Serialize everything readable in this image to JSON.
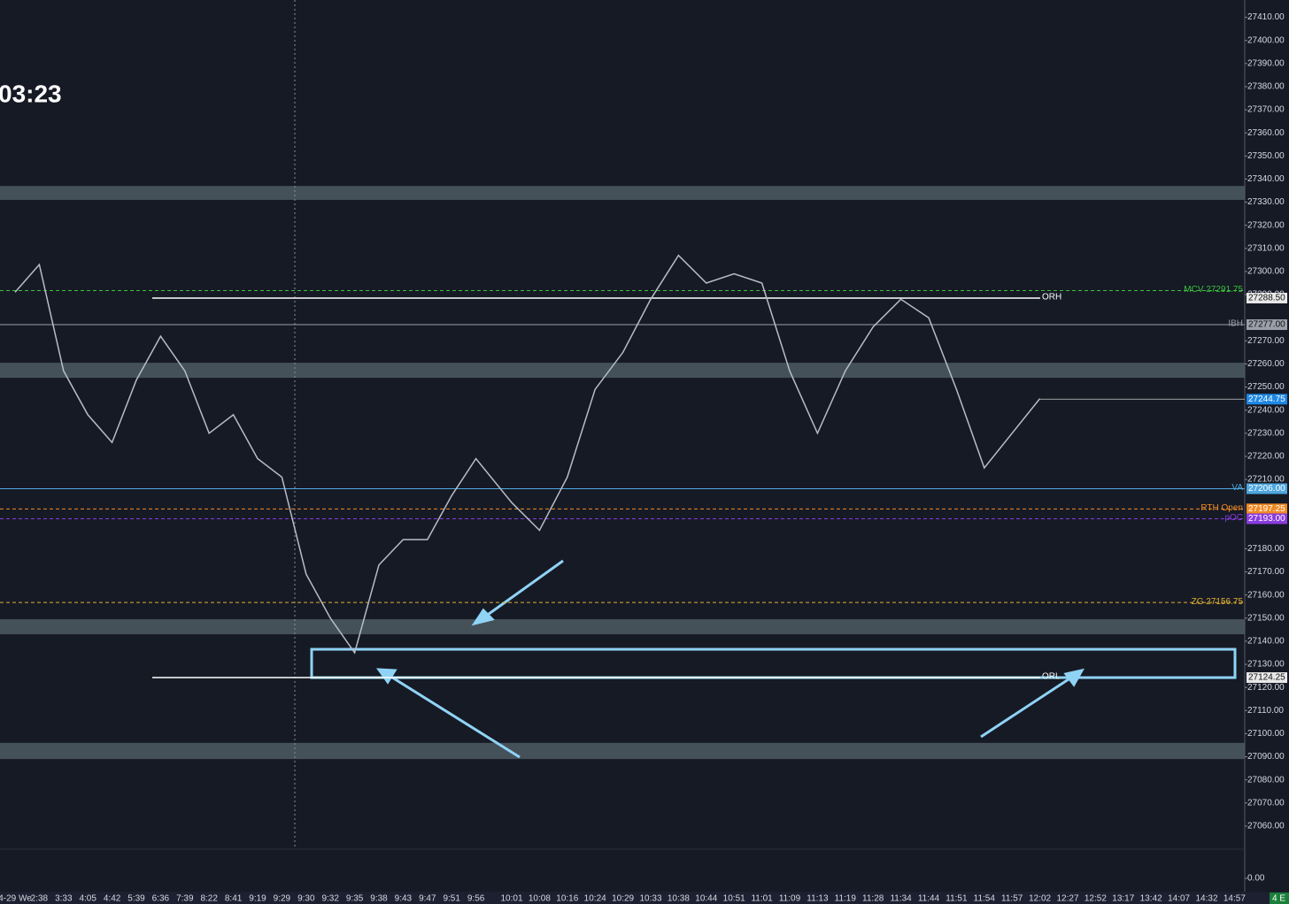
{
  "chart_data": {
    "type": "line",
    "timer": "03:23",
    "categories": [
      "4-29 We",
      "2:38",
      "3:33",
      "4:05",
      "4:42",
      "5:39",
      "6:36",
      "7:39",
      "8:22",
      "8:41",
      "9:19",
      "9:29",
      "9:30",
      "9:32",
      "9:35",
      "9:38",
      "9:43",
      "9:47",
      "9:51",
      "9:56",
      "10:01",
      "10:08",
      "10:16",
      "10:24",
      "10:29",
      "10:33",
      "10:38",
      "10:44",
      "10:51",
      "11:01",
      "11:09",
      "11:13",
      "11:19",
      "11:28",
      "11:34",
      "11:44",
      "11:51",
      "11:54",
      "11:57",
      "12:02",
      "12:27",
      "12:52",
      "13:17",
      "13:42",
      "14:07",
      "14:32",
      "14:57"
    ],
    "series": [
      {
        "color": "#b8bcc6",
        "values": [
          27291,
          27303,
          27257,
          27238,
          27226,
          27253,
          27272,
          27257,
          27230,
          27238,
          27219,
          27211,
          27169,
          27150,
          27135,
          27173,
          27184,
          27184,
          27203,
          27219,
          27200,
          27188,
          27211,
          27249,
          27265,
          27288,
          27307,
          27295,
          27299,
          27295,
          27257,
          27230,
          27257,
          27276,
          27288,
          27280,
          27249,
          27215,
          27230,
          27245,
          null,
          null,
          null,
          null,
          null,
          null,
          null
        ]
      }
    ],
    "ylim": [
      27050,
      27417.5
    ],
    "yticks": [
      {
        "value": 27410,
        "label": "27410.00"
      },
      {
        "value": 27400,
        "label": "27400.00"
      },
      {
        "value": 27390,
        "label": "27390.00"
      },
      {
        "value": 27380,
        "label": "27380.00"
      },
      {
        "value": 27370,
        "label": "27370.00"
      },
      {
        "value": 27360,
        "label": "27360.00"
      },
      {
        "value": 27350,
        "label": "27350.00"
      },
      {
        "value": 27340,
        "label": "27340.00"
      },
      {
        "value": 27330,
        "label": "27330.00"
      },
      {
        "value": 27320,
        "label": "27320.00"
      },
      {
        "value": 27310,
        "label": "27310.00"
      },
      {
        "value": 27300,
        "label": "27300.00"
      },
      {
        "value": 27290,
        "label": "27290.00"
      },
      {
        "value": 27270,
        "label": "27270.00"
      },
      {
        "value": 27260,
        "label": "27260.00"
      },
      {
        "value": 27250,
        "label": "27250.00"
      },
      {
        "value": 27240,
        "label": "27240.00"
      },
      {
        "value": 27230,
        "label": "27230.00"
      },
      {
        "value": 27220,
        "label": "27220.00"
      },
      {
        "value": 27210,
        "label": "27210.00"
      },
      {
        "value": 27180,
        "label": "27180.00"
      },
      {
        "value": 27170,
        "label": "27170.00"
      },
      {
        "value": 27160,
        "label": "27160.00"
      },
      {
        "value": 27150,
        "label": "27150.00"
      },
      {
        "value": 27140,
        "label": "27140.00"
      },
      {
        "value": 27130,
        "label": "27130.00"
      },
      {
        "value": 27120,
        "label": "27120.00"
      },
      {
        "value": 27110,
        "label": "27110.00"
      },
      {
        "value": 27100,
        "label": "27100.00"
      },
      {
        "value": 27090,
        "label": "27090.00"
      },
      {
        "value": 27080,
        "label": "27080.00"
      },
      {
        "value": 27070,
        "label": "27070.00"
      },
      {
        "value": 27060,
        "label": "27060.00"
      }
    ],
    "zones": [
      [
        27331,
        27337
      ],
      [
        27254,
        27260.5
      ],
      [
        27143,
        27149.5
      ],
      [
        27089,
        27096
      ]
    ],
    "highlight": [
      27124.25,
      27136.5
    ],
    "levels": [
      {
        "label": "ORH",
        "value": 27288.5,
        "tag": "27288.50",
        "color": "#ffffff"
      },
      {
        "label": "MCV 27291.75",
        "value": 27291.75,
        "color": "#3bbf3b"
      },
      {
        "label": "IBH",
        "value": 27277,
        "tag": "27277.00",
        "color": "#9aa0aa"
      },
      {
        "label": "VA",
        "value": 27206,
        "tag": "27206.00",
        "color": "#4ea7e0"
      },
      {
        "label": "RTH Open",
        "value": 27197.25,
        "tag": "27197.25",
        "color": "#f08a24"
      },
      {
        "label": "pOC",
        "value": 27193,
        "tag": "27193.00",
        "color": "#8a3ce0"
      },
      {
        "label": "ZG 27156.75",
        "value": 27156.75,
        "color": "#e0b030"
      },
      {
        "label": "ORL",
        "value": 27124.25,
        "tag": "27124.25",
        "color": "#ffffff"
      }
    ],
    "last_price": {
      "value": 27244.75,
      "tag": "27244.75"
    },
    "volume_tick": {
      "value": 0,
      "label": "0.00"
    },
    "corner_tag": "4 E"
  }
}
